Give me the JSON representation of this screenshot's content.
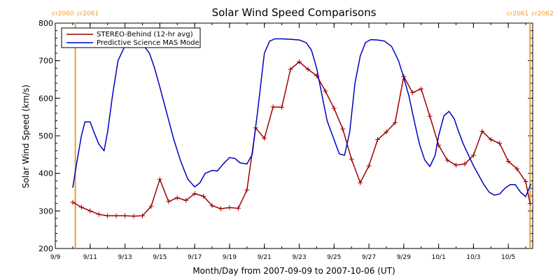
{
  "chart_data": {
    "type": "line",
    "title": "Solar Wind Speed Comparisons",
    "xlabel": "Month/Day from 2007-09-09 to 2007-10-06 (UT)",
    "ylabel": "Solar Wind Speed (km/s)",
    "ylim": [
      200,
      800
    ],
    "yticks": [
      200,
      300,
      400,
      500,
      600,
      700,
      800
    ],
    "xlim_days": [
      9,
      36.4
    ],
    "xticks": [
      {
        "day": 9,
        "label": "9/9"
      },
      {
        "day": 11,
        "label": "9/11"
      },
      {
        "day": 13,
        "label": "9/13"
      },
      {
        "day": 15,
        "label": "9/15"
      },
      {
        "day": 17,
        "label": "9/17"
      },
      {
        "day": 19,
        "label": "9/19"
      },
      {
        "day": 21,
        "label": "9/21"
      },
      {
        "day": 23,
        "label": "9/23"
      },
      {
        "day": 25,
        "label": "9/25"
      },
      {
        "day": 27,
        "label": "9/27"
      },
      {
        "day": 29,
        "label": "9/29"
      },
      {
        "day": 31,
        "label": "10/1"
      },
      {
        "day": 33,
        "label": "10/3"
      },
      {
        "day": 35,
        "label": "10/5"
      }
    ],
    "carrington": [
      {
        "day": 10.15,
        "left": "cr2060",
        "right": "cr2061"
      },
      {
        "day": 36.25,
        "left": "cr2061",
        "right": "cr2062"
      }
    ],
    "legend": {
      "position": "top-left"
    },
    "series": [
      {
        "name": "STEREO-Behind (12-hr avg)",
        "color": "#a00000",
        "marker": "+",
        "x": [
          10.0,
          10.5,
          11.0,
          11.5,
          12.0,
          12.5,
          13.0,
          13.5,
          14.0,
          14.5,
          15.0,
          15.5,
          16.0,
          16.5,
          17.0,
          17.5,
          18.0,
          18.5,
          19.0,
          19.5,
          20.0,
          20.5,
          21.0,
          21.5,
          22.0,
          22.5,
          23.0,
          23.5,
          24.0,
          24.5,
          25.0,
          25.5,
          26.0,
          26.5,
          27.0,
          27.5,
          28.0,
          28.5,
          29.0,
          29.5,
          30.0,
          30.5,
          31.0,
          31.5,
          32.0,
          32.5,
          33.0,
          33.5,
          34.0,
          34.5,
          35.0,
          35.5,
          36.0,
          36.25
        ],
        "y": [
          323,
          310,
          300,
          291,
          287,
          287,
          287,
          286,
          287,
          312,
          384,
          325,
          335,
          328,
          346,
          339,
          314,
          306,
          309,
          307,
          356,
          521,
          493,
          577,
          576,
          677,
          697,
          677,
          660,
          619,
          573,
          518,
          438,
          375,
          420,
          490,
          510,
          535,
          658,
          615,
          625,
          552,
          475,
          435,
          422,
          425,
          448,
          512,
          490,
          480,
          432,
          412,
          378,
          320
        ]
      },
      {
        "name": "Predictive Science MAS Model",
        "color": "#0000c0",
        "marker": "none",
        "x": [
          10.0,
          10.2,
          10.5,
          10.7,
          11.0,
          11.2,
          11.5,
          11.8,
          12.0,
          12.3,
          12.6,
          13.0,
          13.3,
          13.6,
          14.0,
          14.4,
          14.7,
          15.0,
          15.4,
          15.8,
          16.2,
          16.6,
          17.0,
          17.3,
          17.6,
          18.0,
          18.3,
          18.6,
          19.0,
          19.3,
          19.6,
          20.0,
          20.3,
          20.6,
          21.0,
          21.3,
          21.6,
          22.0,
          22.5,
          23.0,
          23.4,
          23.7,
          24.0,
          24.3,
          24.6,
          25.0,
          25.3,
          25.6,
          25.9,
          26.2,
          26.5,
          26.8,
          27.1,
          27.5,
          27.9,
          28.3,
          28.7,
          29.0,
          29.3,
          29.6,
          29.9,
          30.2,
          30.5,
          30.8,
          31.0,
          31.3,
          31.6,
          31.9,
          32.1,
          32.4,
          32.7,
          33.0,
          33.3,
          33.6,
          33.9,
          34.2,
          34.5,
          34.8,
          35.1,
          35.4,
          35.7,
          36.0,
          36.3
        ],
        "y": [
          362,
          420,
          500,
          537,
          537,
          512,
          478,
          460,
          510,
          612,
          700,
          740,
          745,
          748,
          745,
          720,
          680,
          630,
          560,
          490,
          432,
          385,
          364,
          375,
          400,
          408,
          406,
          423,
          442,
          440,
          428,
          425,
          450,
          560,
          720,
          752,
          758,
          758,
          757,
          755,
          748,
          728,
          680,
          610,
          540,
          490,
          452,
          448,
          510,
          640,
          712,
          748,
          756,
          755,
          752,
          738,
          700,
          655,
          605,
          540,
          478,
          436,
          418,
          448,
          500,
          553,
          565,
          545,
          517,
          480,
          450,
          420,
          395,
          370,
          350,
          342,
          345,
          360,
          370,
          370,
          350,
          338,
          372
        ]
      }
    ]
  }
}
